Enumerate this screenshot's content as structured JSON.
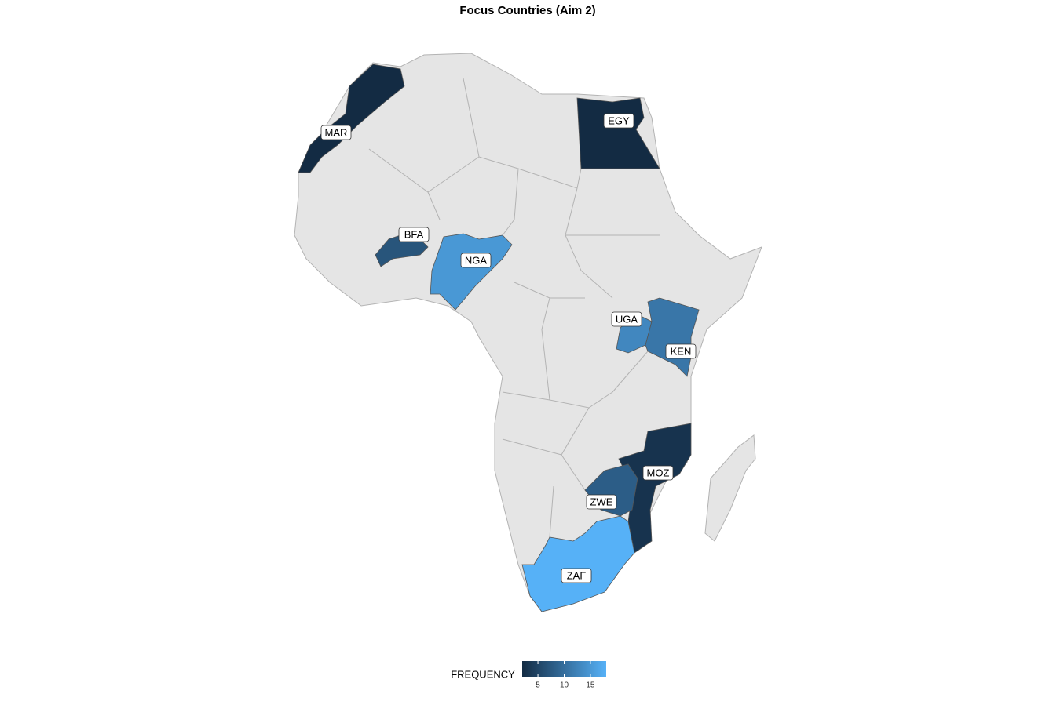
{
  "chart_data": {
    "type": "choropleth",
    "title": "Focus Countries (Aim 2)",
    "categories": [
      "MAR",
      "EGY",
      "BFA",
      "NGA",
      "UGA",
      "KEN",
      "MOZ",
      "ZWE",
      "ZAF"
    ],
    "values": [
      2,
      2,
      7,
      15,
      13,
      11,
      3,
      8,
      18
    ],
    "legend_title": "FREQUENCY",
    "low_color": "#132B43",
    "high_color": "#56B1F7",
    "lim": [
      2,
      18
    ],
    "ticks": [
      5,
      10,
      15
    ]
  }
}
